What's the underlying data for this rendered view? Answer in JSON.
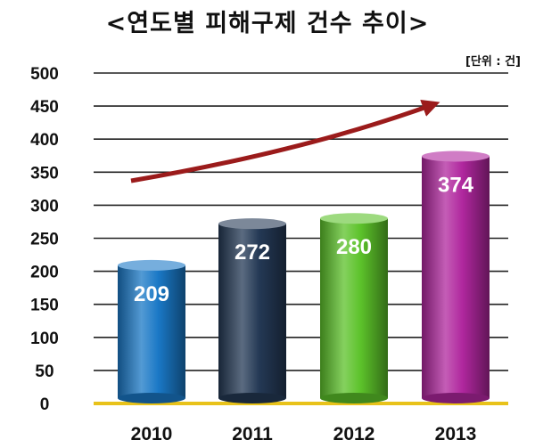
{
  "chart_data": {
    "type": "bar",
    "title": "<연도별 피해구제 건수 추이>",
    "unit_label": "[단위 : 건]",
    "categories": [
      "2010",
      "2011",
      "2012",
      "2013"
    ],
    "values": [
      209,
      272,
      280,
      374
    ],
    "ylim": [
      0,
      500
    ],
    "yticks": [
      0,
      50,
      100,
      150,
      200,
      250,
      300,
      350,
      400,
      450,
      500
    ],
    "grid": true,
    "bar_colors": [
      "#1a78c6",
      "#243955",
      "#5cc22a",
      "#b0279e"
    ],
    "trend_arrow_color": "#9b1b1b"
  }
}
